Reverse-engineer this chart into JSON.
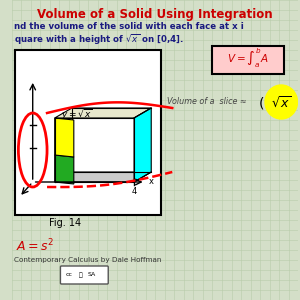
{
  "title": "Volume of a Solid Using Integration",
  "title_color": "#cc0000",
  "bg_color": "#d4dfc8",
  "grid_color": "#b8ccaa",
  "subtitle1": "nd the volume of the solid with each face at x i",
  "subtitle2": "quare with a height of $\\sqrt{x}$ on [0,4].",
  "fig_label": "Fig. 14",
  "curve_label": "$y = \\sqrt{x}$",
  "x_label": "x",
  "x_tick": "4",
  "slice_text": "Volume of a  slice ≈",
  "area_formula": "$A = s^{2}$",
  "credit": "Contemporary Calculus by Dale Hoffman"
}
